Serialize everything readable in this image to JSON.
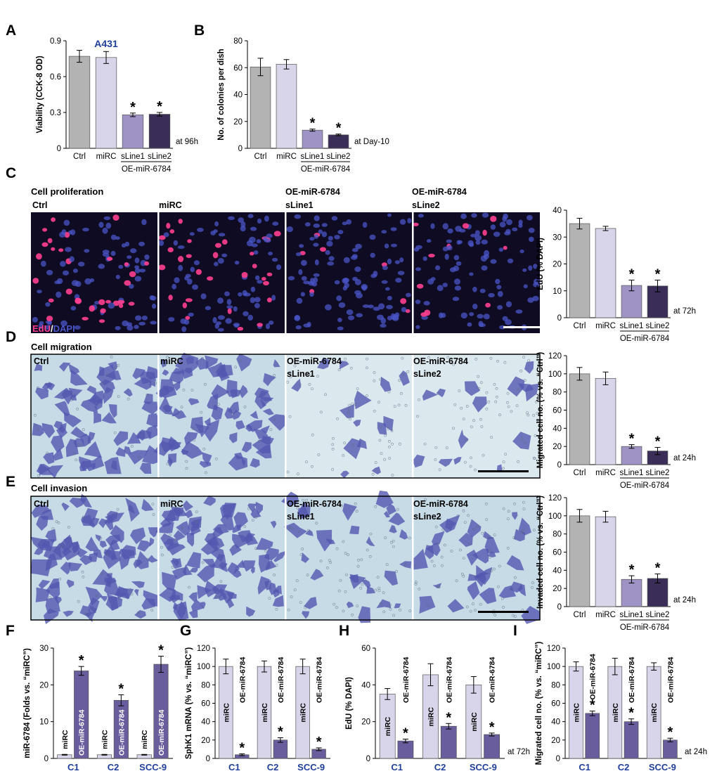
{
  "colors": {
    "ctrl": "#b3b3b3",
    "mirc": "#d8d5ea",
    "sline1": "#9e93c4",
    "sline2": "#3a2d57",
    "oe": "#6a5d9e",
    "group_label": "#1f3f9a",
    "prolif_bg": "#0e0b22",
    "nucleus_blue": "#4a55c8",
    "nucleus_pink": "#ff3f8f",
    "stain_bg": "#c6dbe6",
    "stain_bg_light": "#dbe8ee",
    "stain_cell": "#5457b0"
  },
  "panel_letters": [
    "A",
    "B",
    "C",
    "D",
    "E",
    "F",
    "G",
    "H",
    "I"
  ],
  "image_panels": {
    "C": {
      "title": "Cell proliferation",
      "labels": [
        [
          "Ctrl"
        ],
        [
          "miRC"
        ],
        [
          "OE-miR-6784",
          "sLine1"
        ],
        [
          "OE-miR-6784",
          "sLine2"
        ]
      ],
      "stain_label_a": "EdU",
      "stain_label_sep": "/",
      "stain_label_b": "DAPI"
    },
    "D": {
      "title": "Cell migration",
      "labels": [
        [
          "Ctrl"
        ],
        [
          "miRC"
        ],
        [
          "OE-miR-6784",
          "sLine1"
        ],
        [
          "OE-miR-6784",
          "sLine2"
        ]
      ]
    },
    "E": {
      "title": "Cell invasion",
      "labels": [
        [
          "Ctrl"
        ],
        [
          "miRC"
        ],
        [
          "OE-miR-6784",
          "sLine1"
        ],
        [
          "OE-miR-6784",
          "sLine2"
        ]
      ]
    }
  },
  "chart_data": [
    {
      "id": "A",
      "type": "bar",
      "title": "A431",
      "categories": [
        "Ctrl",
        "miRC",
        "sLine1",
        "sLine2"
      ],
      "values": [
        0.77,
        0.76,
        0.28,
        0.285
      ],
      "errors": [
        0.05,
        0.05,
        0.015,
        0.015
      ],
      "significant": [
        false,
        false,
        true,
        true
      ],
      "ylabel": "Viability (CCK-8 OD)",
      "ylim": [
        0,
        0.9
      ],
      "yticks": [
        "0",
        "0.3",
        "0.6",
        "0.9"
      ],
      "underline_label": "OE-miR-6784",
      "annotation": "at 96h"
    },
    {
      "id": "B",
      "type": "bar",
      "categories": [
        "Ctrl",
        "miRC",
        "sLine1",
        "sLine2"
      ],
      "values": [
        60.5,
        62.5,
        13.5,
        10
      ],
      "errors": [
        6.5,
        3.5,
        0.8,
        0.6
      ],
      "significant": [
        false,
        false,
        true,
        true
      ],
      "ylabel": "No. of colonies per dish",
      "ylim": [
        0,
        80
      ],
      "yticks": [
        "0",
        "20",
        "40",
        "60",
        "80"
      ],
      "underline_label": "OE-miR-6784",
      "annotation": "at Day-10"
    },
    {
      "id": "C",
      "type": "bar",
      "categories": [
        "Ctrl",
        "miRC",
        "sLine1",
        "sLine2"
      ],
      "values": [
        35,
        33.2,
        12,
        11.8
      ],
      "errors": [
        2,
        0.8,
        2,
        2.2
      ],
      "significant": [
        false,
        false,
        true,
        true
      ],
      "ylabel": "EdU (% DAPI)",
      "ylim": [
        0,
        40
      ],
      "yticks": [
        "0",
        "10",
        "20",
        "30",
        "40"
      ],
      "underline_label": "OE-miR-6784",
      "annotation": "at 72h"
    },
    {
      "id": "D",
      "type": "bar",
      "categories": [
        "Ctrl",
        "miRC",
        "sLine1",
        "sLine2"
      ],
      "values": [
        100,
        95,
        20,
        15
      ],
      "errors": [
        7,
        7,
        2,
        4
      ],
      "significant": [
        false,
        false,
        true,
        true
      ],
      "ylabel": "Migrated cell no. (% vs. “Ctrl”)",
      "ylim": [
        0,
        120
      ],
      "yticks": [
        "0",
        "20",
        "40",
        "60",
        "80",
        "100",
        "120"
      ],
      "underline_label": "OE-miR-6784",
      "annotation": "at 24h"
    },
    {
      "id": "E",
      "type": "bar",
      "categories": [
        "Ctrl",
        "miRC",
        "sLine1",
        "sLine2"
      ],
      "values": [
        100,
        99,
        30,
        31
      ],
      "errors": [
        7,
        6,
        4,
        5
      ],
      "significant": [
        false,
        false,
        true,
        true
      ],
      "ylabel": "Invaded cell no. (% vs. “Ctrl”)",
      "ylim": [
        0,
        120
      ],
      "yticks": [
        "0",
        "20",
        "40",
        "60",
        "80",
        "100",
        "120"
      ],
      "underline_label": "OE-miR-6784",
      "annotation": "at 24h"
    },
    {
      "id": "F",
      "type": "bar",
      "groups": [
        "C1",
        "C2",
        "SCC-9"
      ],
      "series": [
        {
          "name": "miRC",
          "values": [
            1,
            1,
            1
          ],
          "errors": [
            0.1,
            0.1,
            0.1
          ],
          "significant": [
            false,
            false,
            false
          ]
        },
        {
          "name": "OE-miR-6784",
          "values": [
            23.8,
            15.8,
            25.6
          ],
          "errors": [
            1.2,
            1.5,
            2.2
          ],
          "significant": [
            true,
            true,
            true
          ]
        }
      ],
      "ylabel": "miR-6784 (Folds vs. “miRC”)",
      "ylim": [
        0,
        30
      ],
      "yticks": [
        "0",
        "10",
        "20",
        "30"
      ],
      "annotation": ""
    },
    {
      "id": "G",
      "type": "bar",
      "groups": [
        "C1",
        "C2",
        "SCC-9"
      ],
      "series": [
        {
          "name": "miRC",
          "values": [
            100,
            100,
            100
          ],
          "errors": [
            8,
            6,
            8
          ],
          "significant": [
            false,
            false,
            false
          ]
        },
        {
          "name": "OE-miR-6784",
          "values": [
            4,
            20,
            10
          ],
          "errors": [
            1,
            2.5,
            1.5
          ],
          "significant": [
            true,
            true,
            true
          ]
        }
      ],
      "ylabel": "SphK1 mRNA (% vs. “miRC”)",
      "ylim": [
        0,
        120
      ],
      "yticks": [
        "0",
        "20",
        "40",
        "60",
        "80",
        "100",
        "120"
      ],
      "annotation": ""
    },
    {
      "id": "H",
      "type": "bar",
      "groups": [
        "C1",
        "C2",
        "SCC-9"
      ],
      "series": [
        {
          "name": "miRC",
          "values": [
            35,
            45.5,
            40
          ],
          "errors": [
            3,
            6,
            4.5
          ],
          "significant": [
            false,
            false,
            false
          ]
        },
        {
          "name": "OE-miR-6784",
          "values": [
            9.5,
            17.5,
            13
          ],
          "errors": [
            1,
            1.5,
            0.8
          ],
          "significant": [
            true,
            true,
            true
          ]
        }
      ],
      "ylabel": "EdU (% DAPI)",
      "ylim": [
        0,
        60
      ],
      "yticks": [
        "0",
        "20",
        "40",
        "60"
      ],
      "annotation": "at 72h"
    },
    {
      "id": "I",
      "type": "bar",
      "groups": [
        "C1",
        "C2",
        "SCC-9"
      ],
      "series": [
        {
          "name": "miRC",
          "values": [
            100,
            100,
            100
          ],
          "errors": [
            5,
            9,
            4
          ],
          "significant": [
            false,
            false,
            false
          ]
        },
        {
          "name": "OE-miR-6784",
          "values": [
            49,
            40,
            20
          ],
          "errors": [
            2.5,
            3,
            2
          ],
          "significant": [
            true,
            true,
            true
          ]
        }
      ],
      "ylabel": "Migrated cell no. (% vs. “miRC”)",
      "ylim": [
        0,
        120
      ],
      "yticks": [
        "0",
        "20",
        "40",
        "60",
        "80",
        "100",
        "120"
      ],
      "annotation": "at 24h"
    }
  ]
}
